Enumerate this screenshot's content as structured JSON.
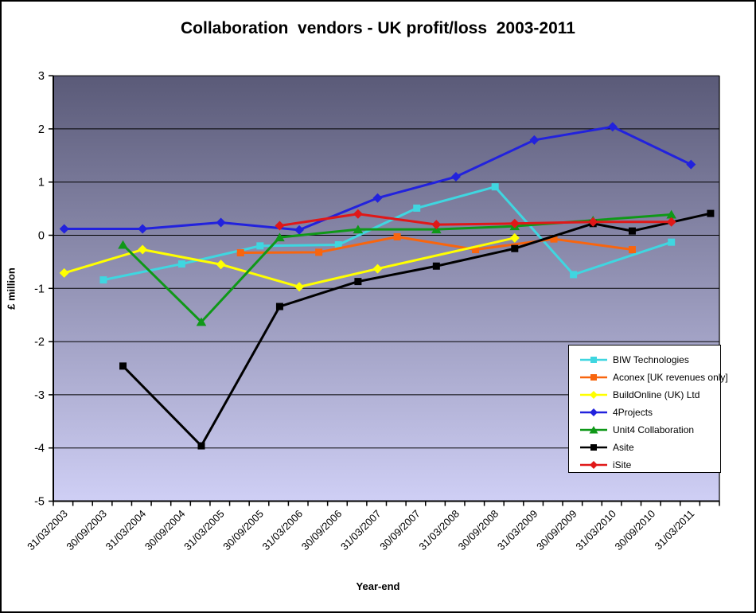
{
  "window": {
    "background": "#FFFFFF",
    "frame_border_color": "#000000"
  },
  "chart_data": {
    "type": "line",
    "title": "Collaboration  vendors - UK profit/loss  2003-2011",
    "xlabel": "Year-end",
    "ylabel": "£ million",
    "ylim": [
      -5,
      3
    ],
    "yticks": [
      3,
      2,
      1,
      0,
      -1,
      -2,
      -3,
      -4,
      -5
    ],
    "xtick_labels": [
      "31/03/2003",
      "30/09/2003",
      "31/03/2004",
      "30/09/2004",
      "31/03/2005",
      "30/09/2005",
      "31/03/2006",
      "30/09/2006",
      "31/03/2007",
      "30/09/2007",
      "31/03/2008",
      "30/09/2008",
      "31/03/2009",
      "30/09/2009",
      "31/03/2010",
      "30/09/2010",
      "31/03/2011"
    ],
    "grid": "on",
    "legend_position": "inside-right",
    "plot_gradient_top": "#5A5A78",
    "plot_gradient_bottom": "#CFCFF5",
    "axis_color": "#000000",
    "series": [
      {
        "name": "BIW Technologies",
        "color": "#3FD6E0",
        "marker": "square",
        "points": [
          {
            "date": "30/09/2003",
            "t": 0.5,
            "y": -0.84
          },
          {
            "date": "30/09/2004",
            "t": 1.5,
            "y": -0.54
          },
          {
            "date": "30/09/2005",
            "t": 2.5,
            "y": -0.2
          },
          {
            "date": "30/09/2006",
            "t": 3.5,
            "y": -0.18
          },
          {
            "date": "30/09/2007",
            "t": 4.5,
            "y": 0.51
          },
          {
            "date": "30/09/2008",
            "t": 5.5,
            "y": 0.91
          },
          {
            "date": "30/09/2009",
            "t": 6.5,
            "y": -0.74
          },
          {
            "date": "31/12/2010",
            "t": 7.75,
            "y": -0.13
          }
        ]
      },
      {
        "name": "Aconex [UK revenues only]",
        "color": "#F8650E",
        "marker": "square",
        "points": [
          {
            "date": "30/06/2005",
            "t": 2.25,
            "y": -0.33
          },
          {
            "date": "30/06/2006",
            "t": 3.25,
            "y": -0.32
          },
          {
            "date": "30/06/2007",
            "t": 4.25,
            "y": -0.03
          },
          {
            "date": "30/06/2008",
            "t": 5.25,
            "y": -0.27
          },
          {
            "date": "30/06/2009",
            "t": 6.25,
            "y": -0.07
          },
          {
            "date": "30/06/2010",
            "t": 7.25,
            "y": -0.27
          }
        ]
      },
      {
        "name": "BuildOnline (UK) Ltd",
        "color": "#FFFF00",
        "marker": "diamond",
        "points": [
          {
            "date": "31/03/2003",
            "t": 0,
            "y": -0.71
          },
          {
            "date": "31/03/2004",
            "t": 1,
            "y": -0.27
          },
          {
            "date": "31/03/2005",
            "t": 2,
            "y": -0.55
          },
          {
            "date": "31/03/2006",
            "t": 3,
            "y": -0.97
          },
          {
            "date": "31/03/2007",
            "t": 4,
            "y": -0.63
          },
          {
            "date": "31/12/2008",
            "t": 5.75,
            "y": -0.05
          }
        ]
      },
      {
        "name": "4Projects",
        "color": "#2222DD",
        "marker": "diamond",
        "points": [
          {
            "date": "31/03/2003",
            "t": 0,
            "y": 0.12
          },
          {
            "date": "31/03/2004",
            "t": 1,
            "y": 0.12
          },
          {
            "date": "31/03/2005",
            "t": 2,
            "y": 0.24
          },
          {
            "date": "31/03/2006",
            "t": 3,
            "y": 0.1
          },
          {
            "date": "31/03/2007",
            "t": 4,
            "y": 0.7
          },
          {
            "date": "31/03/2008",
            "t": 5,
            "y": 1.1
          },
          {
            "date": "31/03/2009",
            "t": 6,
            "y": 1.79
          },
          {
            "date": "31/03/2010",
            "t": 7,
            "y": 2.04
          },
          {
            "date": "31/03/2011",
            "t": 8,
            "y": 1.33
          }
        ]
      },
      {
        "name": "Unit4 Collaboration",
        "color": "#0F9818",
        "marker": "triangle",
        "points": [
          {
            "date": "31/12/2003",
            "t": 0.75,
            "y": -0.18
          },
          {
            "date": "31/12/2004",
            "t": 1.75,
            "y": -1.63
          },
          {
            "date": "31/12/2005",
            "t": 2.75,
            "y": -0.04
          },
          {
            "date": "31/12/2006",
            "t": 3.75,
            "y": 0.11
          },
          {
            "date": "31/12/2007",
            "t": 4.75,
            "y": 0.11
          },
          {
            "date": "31/12/2008",
            "t": 5.75,
            "y": 0.17
          },
          {
            "date": "31/12/2009",
            "t": 6.75,
            "y": 0.28
          },
          {
            "date": "31/12/2010",
            "t": 7.75,
            "y": 0.39
          }
        ]
      },
      {
        "name": "Asite",
        "color": "#000000",
        "marker": "square",
        "points": [
          {
            "date": "31/12/2003",
            "t": 0.75,
            "y": -2.46
          },
          {
            "date": "31/12/2004",
            "t": 1.75,
            "y": -3.96
          },
          {
            "date": "31/12/2005",
            "t": 2.75,
            "y": -1.34
          },
          {
            "date": "31/12/2006",
            "t": 3.75,
            "y": -0.87
          },
          {
            "date": "31/12/2007",
            "t": 4.75,
            "y": -0.58
          },
          {
            "date": "31/12/2008",
            "t": 5.75,
            "y": -0.25
          },
          {
            "date": "31/12/2009",
            "t": 6.75,
            "y": 0.22
          },
          {
            "date": "30/06/2010",
            "t": 7.25,
            "y": 0.08
          },
          {
            "date": "30/06/2011",
            "t": 8.25,
            "y": 0.41
          }
        ]
      },
      {
        "name": "iSite",
        "color": "#E01818",
        "marker": "diamond",
        "points": [
          {
            "date": "31/12/2005",
            "t": 2.75,
            "y": 0.18
          },
          {
            "date": "31/12/2006",
            "t": 3.75,
            "y": 0.4
          },
          {
            "date": "31/12/2007",
            "t": 4.75,
            "y": 0.2
          },
          {
            "date": "31/12/2008",
            "t": 5.75,
            "y": 0.22
          },
          {
            "date": "31/12/2009",
            "t": 6.75,
            "y": 0.25
          },
          {
            "date": "31/12/2010",
            "t": 7.75,
            "y": 0.25
          }
        ]
      }
    ]
  }
}
